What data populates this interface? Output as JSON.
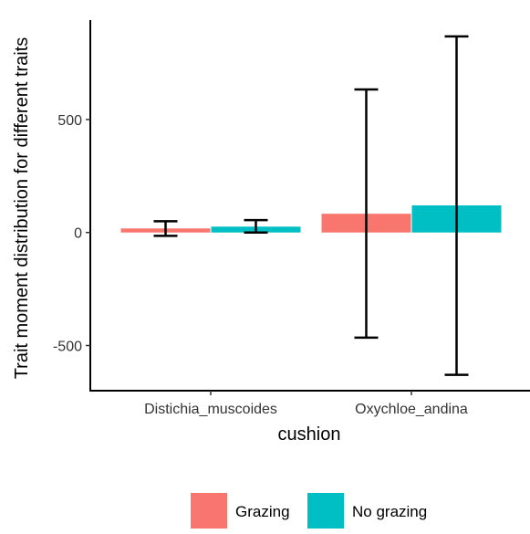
{
  "chart_data": {
    "type": "bar",
    "title": "",
    "xlabel": "cushion",
    "ylabel": "Trait moment distribution for different traits",
    "categories": [
      "Distichia_muscoides",
      "Oxychloe_andina"
    ],
    "series": [
      {
        "name": "Grazing",
        "color": "#F8766D",
        "values": [
          18,
          83
        ],
        "err_low": [
          -15,
          -465
        ],
        "err_high": [
          50,
          633
        ]
      },
      {
        "name": "No grazing",
        "color": "#00BFC4",
        "values": [
          26,
          120
        ],
        "err_low": [
          0,
          -630
        ],
        "err_high": [
          55,
          868
        ]
      }
    ],
    "yticks": [
      -500,
      0,
      500
    ],
    "ytick_labels": [
      "-500",
      "0",
      "500"
    ],
    "ylim": [
      -700,
      940
    ],
    "grid": false,
    "legend_position": "bottom"
  }
}
